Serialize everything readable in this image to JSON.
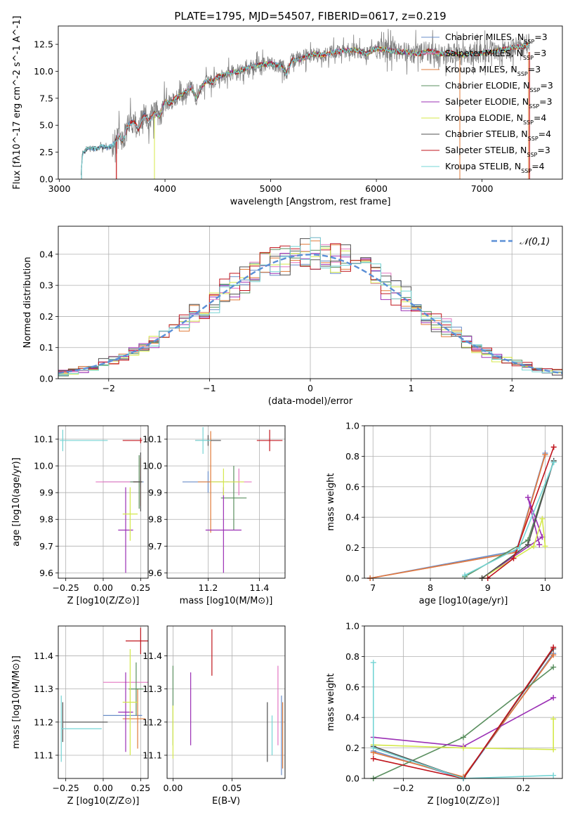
{
  "figure": {
    "background": "#ffffff"
  },
  "chart_data": [
    {
      "id": "spectrum",
      "type": "line",
      "title": "PLATE=1795, MJD=54507, FIBERID=0617, z=0.219",
      "xlabel": "wavelength [Angstrom, rest frame]",
      "ylabel": "Flux [fλ10^-17 erg cm^-2 s^-1 A^-1]",
      "xlim": [
        2990,
        7760
      ],
      "ylim": [
        0,
        14.2
      ],
      "xticks": [
        "3000",
        "4000",
        "5000",
        "6000",
        "7000"
      ],
      "yticks": [
        "0.0",
        "2.5",
        "5.0",
        "7.5",
        "10.0",
        "12.5"
      ],
      "grid": false,
      "legend": "upper-right",
      "data_series": {
        "color": "#808080",
        "x": [
          3205,
          3220,
          3260,
          3300,
          3350,
          3400,
          3450,
          3500,
          3560,
          3600,
          3650,
          3700,
          3750,
          3800,
          3850,
          3900,
          3950,
          4000,
          4050,
          4100,
          4150,
          4200,
          4250,
          4300,
          4350,
          4400,
          4450,
          4500,
          4600,
          4700,
          4800,
          4900,
          5000,
          5100,
          5150,
          5200,
          5300,
          5400,
          5500,
          5600,
          5700,
          5800,
          5900,
          6000,
          6100,
          6200,
          6300,
          6400,
          6500,
          6600,
          6700,
          6800,
          6900,
          7000,
          7100,
          7200,
          7300,
          7400,
          7450
        ],
        "y": [
          0.5,
          2.4,
          2.8,
          2.9,
          2.8,
          3.0,
          2.9,
          3.1,
          4.0,
          3.5,
          5.0,
          5.4,
          4.6,
          6.0,
          5.5,
          6.2,
          5.8,
          7.2,
          7.0,
          7.5,
          7.8,
          8.1,
          8.5,
          7.4,
          8.7,
          9.1,
          9.0,
          9.5,
          9.8,
          10.0,
          10.4,
          10.6,
          10.7,
          10.5,
          9.8,
          11.0,
          11.2,
          11.6,
          11.5,
          11.8,
          11.9,
          12.0,
          11.6,
          12.1,
          12.0,
          11.8,
          11.8,
          11.6,
          11.9,
          11.6,
          11.7,
          11.5,
          11.6,
          11.7,
          11.8,
          12.0,
          12.2,
          12.3,
          12.6
        ]
      },
      "model_series": [
        {
          "name": "Chabrier MILES, N_SSP=3",
          "color": "#6a8ec8"
        },
        {
          "name": "Salpeter MILES, N_SSP=3",
          "color": "#e377c2"
        },
        {
          "name": "Kroupa MILES, N_SSP=3",
          "color": "#e07b39"
        },
        {
          "name": "Chabrier ELODIE, N_SSP=3",
          "color": "#5a8f5f"
        },
        {
          "name": "Salpeter ELODIE, N_SSP=3",
          "color": "#9b30b5"
        },
        {
          "name": "Kroupa ELODIE, N_SSP=4",
          "color": "#d4e84a"
        },
        {
          "name": "Chabrier STELIB, N_SSP=4",
          "color": "#505050"
        },
        {
          "name": "Salpeter STELIB, N_SSP=3",
          "color": "#c0141c"
        },
        {
          "name": "Kroupa STELIB, N_SSP=4",
          "color": "#74d4d4"
        }
      ],
      "model_start": [
        3210,
        3540,
        3540,
        3900,
        3900,
        3900,
        3210,
        3540,
        3210
      ]
    },
    {
      "id": "residuals",
      "type": "histogram",
      "xlabel": "(data-model)/error",
      "ylabel": "Normed distribution",
      "xlim": [
        -2.5,
        2.5
      ],
      "ylim": [
        0,
        0.49
      ],
      "xticks": [
        "−2",
        "−1",
        "0",
        "1",
        "2"
      ],
      "yticks": [
        "0.0",
        "0.1",
        "0.2",
        "0.3",
        "0.4"
      ],
      "grid": true,
      "legend": "upper-right",
      "normal_curve": {
        "label": "𝒩(0,1)",
        "color": "#5b8fd6"
      },
      "bin_width": 0.1
    },
    {
      "id": "age-vs-Z",
      "type": "errorbar",
      "xlabel": "Z [log10(Z/Z⊙)]",
      "ylabel": "age  [log10(age/yr)]",
      "xlim": [
        -0.3,
        0.3
      ],
      "ylim": [
        9.58,
        10.15
      ],
      "xticks": [
        "−0.25",
        "0.00",
        "0.25"
      ],
      "yticks": [
        "9.6",
        "9.7",
        "9.8",
        "9.9",
        "10.0",
        "10.1"
      ],
      "grid": true,
      "points": [
        {
          "color": "#6a8ec8",
          "x": 0.25,
          "xerr": [
            0.25,
            0.02
          ],
          "y": 9.94,
          "yerr": 0.02
        },
        {
          "color": "#e377c2",
          "x": -0.05,
          "xerr": [
            0.0,
            0.3
          ],
          "y": 9.94,
          "yerr": 0.0
        },
        {
          "color": "#e07b39",
          "x": 0.25,
          "xerr": [
            0.05,
            0.01
          ],
          "y": 9.94,
          "yerr": 0.09
        },
        {
          "color": "#5a8f5f",
          "x": 0.24,
          "xerr": [
            0.06,
            0.02
          ],
          "y": 9.94,
          "yerr": 0.1
        },
        {
          "color": "#9b30b5",
          "x": 0.15,
          "xerr": [
            0.05,
            0.05
          ],
          "y": 9.76,
          "yerr": 0.16
        },
        {
          "color": "#d4e84a",
          "x": 0.18,
          "xerr": [
            0.05,
            0.05
          ],
          "y": 9.82,
          "yerr": 0.1
        },
        {
          "color": "#505050",
          "x": 0.25,
          "xerr": [
            0.05,
            0.01
          ],
          "y": 9.94,
          "yerr": 0.11
        },
        {
          "color": "#c0141c",
          "x": 0.25,
          "xerr": [
            0.12,
            0.01
          ],
          "y": 10.095,
          "yerr": 0.01
        },
        {
          "color": "#74d4d4",
          "x": -0.27,
          "xerr": [
            0.02,
            0.3
          ],
          "y": 10.095,
          "yerr": 0.04
        }
      ]
    },
    {
      "id": "age-vs-mass",
      "type": "errorbar",
      "xlabel": "mass [log10(M/M⊙)]",
      "ylabel": "",
      "xlim": [
        11.04,
        11.5
      ],
      "ylim": [
        9.58,
        10.15
      ],
      "xticks": [
        "11.2",
        "11.4"
      ],
      "yticks": [
        "9.6",
        "9.7",
        "9.8",
        "9.9",
        "10.0",
        "10.1"
      ],
      "grid": true,
      "points": [
        {
          "color": "#6a8ec8",
          "x": 11.2,
          "xerr": [
            0.1,
            0.08
          ],
          "y": 9.94,
          "yerr": 0.04
        },
        {
          "color": "#e377c2",
          "x": 11.32,
          "xerr": [
            0.05,
            0.05
          ],
          "y": 9.94,
          "yerr": 0.05
        },
        {
          "color": "#e07b39",
          "x": 11.21,
          "xerr": [
            0.05,
            0.05
          ],
          "y": 9.94,
          "yerr": 0.19
        },
        {
          "color": "#5a8f5f",
          "x": 11.3,
          "xerr": [
            0.05,
            0.05
          ],
          "y": 9.88,
          "yerr": 0.12
        },
        {
          "color": "#9b30b5",
          "x": 11.26,
          "xerr": [
            0.07,
            0.07
          ],
          "y": 9.76,
          "yerr": 0.16
        },
        {
          "color": "#d4e84a",
          "x": 11.26,
          "xerr": [
            0.05,
            0.08
          ],
          "y": 9.94,
          "yerr": 0.05
        },
        {
          "color": "#505050",
          "x": 11.2,
          "xerr": [
            0.05,
            0.05
          ],
          "y": 10.095,
          "yerr": 0.02
        },
        {
          "color": "#c0141c",
          "x": 11.44,
          "xerr": [
            0.05,
            0.05
          ],
          "y": 10.095,
          "yerr": 0.04
        },
        {
          "color": "#74d4d4",
          "x": 11.18,
          "xerr": [
            0.03,
            0.03
          ],
          "y": 10.095,
          "yerr": 0.05
        }
      ]
    },
    {
      "id": "weight-vs-age",
      "type": "line",
      "xlabel": "age  [log10(age/yr)]",
      "ylabel": "mass weight",
      "xlim": [
        6.85,
        10.3
      ],
      "ylim": [
        0,
        1.0
      ],
      "xticks": [
        "7",
        "8",
        "9",
        "10"
      ],
      "yticks": [
        "0.0",
        "0.2",
        "0.4",
        "0.6",
        "0.8",
        "1.0"
      ],
      "grid": true,
      "series": [
        {
          "color": "#6a8ec8",
          "x": [
            6.95,
            9.5,
            10.0
          ],
          "y": [
            0.0,
            0.18,
            0.82
          ]
        },
        {
          "color": "#e377c2",
          "x": [
            6.95,
            9.5,
            10.0
          ],
          "y": [
            0.0,
            0.17,
            0.81
          ]
        },
        {
          "color": "#e07b39",
          "x": [
            6.95,
            9.5,
            10.0
          ],
          "y": [
            0.0,
            0.17,
            0.81
          ]
        },
        {
          "color": "#5a8f5f",
          "x": [
            8.6,
            9.7,
            10.15
          ],
          "y": [
            0.01,
            0.25,
            0.77
          ]
        },
        {
          "color": "#9b30b5",
          "x": [
            8.9,
            9.95,
            9.7,
            9.9
          ],
          "y": [
            0.0,
            0.27,
            0.53,
            0.22
          ]
        },
        {
          "color": "#d4e84a",
          "x": [
            8.9,
            9.8,
            9.95,
            10.0
          ],
          "y": [
            0.0,
            0.21,
            0.39,
            0.21
          ]
        },
        {
          "color": "#505050",
          "x": [
            8.9,
            9.7,
            10.15
          ],
          "y": [
            0.0,
            0.22,
            0.77
          ]
        },
        {
          "color": "#c0141c",
          "x": [
            9.0,
            9.45,
            10.15
          ],
          "y": [
            0.0,
            0.13,
            0.86
          ]
        },
        {
          "color": "#74d4d4",
          "x": [
            8.6,
            9.55,
            10.15
          ],
          "y": [
            0.02,
            0.2,
            0.76
          ]
        }
      ]
    },
    {
      "id": "mass-vs-Z",
      "type": "errorbar",
      "xlabel": "Z [log10(Z/Z⊙)]",
      "ylabel": "mass [log10(M/M⊙)]",
      "xlim": [
        -0.3,
        0.3
      ],
      "ylim": [
        11.03,
        11.49
      ],
      "xticks": [
        "−0.25",
        "0.00",
        "0.25"
      ],
      "yticks": [
        "11.1",
        "11.2",
        "11.3",
        "11.4"
      ],
      "grid": true,
      "points": [
        {
          "color": "#6a8ec8",
          "x": 0.13,
          "xerr": [
            0.13,
            0.13
          ],
          "y": 11.22,
          "yerr": 0.0
        },
        {
          "color": "#e377c2",
          "x": 0.15,
          "xerr": [
            0.15,
            0.15
          ],
          "y": 11.32,
          "yerr": 0.0
        },
        {
          "color": "#e07b39",
          "x": 0.23,
          "xerr": [
            0.1,
            0.05
          ],
          "y": 11.21,
          "yerr": 0.09
        },
        {
          "color": "#5a8f5f",
          "x": 0.22,
          "xerr": [
            0.05,
            0.05
          ],
          "y": 11.3,
          "yerr": 0.08
        },
        {
          "color": "#9b30b5",
          "x": 0.15,
          "xerr": [
            0.05,
            0.05
          ],
          "y": 11.23,
          "yerr": 0.12
        },
        {
          "color": "#d4e84a",
          "x": 0.18,
          "xerr": [
            0.05,
            0.05
          ],
          "y": 11.26,
          "yerr": 0.16
        },
        {
          "color": "#505050",
          "x": -0.27,
          "xerr": [
            0.0,
            0.3
          ],
          "y": 11.2,
          "yerr": 0.06
        },
        {
          "color": "#c0141c",
          "x": 0.25,
          "xerr": [
            0.1,
            0.05
          ],
          "y": 11.445,
          "yerr": 0.04
        },
        {
          "color": "#74d4d4",
          "x": -0.28,
          "xerr": [
            0.0,
            0.27
          ],
          "y": 11.18,
          "yerr": 0.1
        }
      ]
    },
    {
      "id": "mass-vs-ebv",
      "type": "errorbar",
      "xlabel": "E(B-V)",
      "ylabel": "",
      "xlim": [
        -0.005,
        0.095
      ],
      "ylim": [
        11.03,
        11.49
      ],
      "xticks": [
        "0.00",
        "0.05"
      ],
      "yticks": [
        "11.1",
        "11.2",
        "11.3",
        "11.4"
      ],
      "grid": true,
      "points": [
        {
          "color": "#6a8ec8",
          "x": 0.092,
          "xerr": [
            0.0,
            0.0
          ],
          "y": 11.16,
          "yerr": 0.12
        },
        {
          "color": "#e377c2",
          "x": 0.089,
          "xerr": [
            0.0,
            0.0
          ],
          "y": 11.25,
          "yerr": 0.12
        },
        {
          "color": "#e07b39",
          "x": 0.093,
          "xerr": [
            0.0,
            0.0
          ],
          "y": 11.16,
          "yerr": 0.1
        },
        {
          "color": "#5a8f5f",
          "x": 0.0,
          "xerr": [
            0.0,
            0.0
          ],
          "y": 11.25,
          "yerr": 0.12
        },
        {
          "color": "#9b30b5",
          "x": 0.015,
          "xerr": [
            0.0,
            0.0
          ],
          "y": 11.24,
          "yerr": 0.11
        },
        {
          "color": "#d4e84a",
          "x": 0.0,
          "xerr": [
            0.0,
            0.0
          ],
          "y": 11.17,
          "yerr": 0.08
        },
        {
          "color": "#505050",
          "x": 0.08,
          "xerr": [
            0.0,
            0.0
          ],
          "y": 11.17,
          "yerr": 0.09
        },
        {
          "color": "#c0141c",
          "x": 0.033,
          "xerr": [
            0.0,
            0.0
          ],
          "y": 11.41,
          "yerr": 0.07
        },
        {
          "color": "#74d4d4",
          "x": 0.084,
          "xerr": [
            0.0,
            0.0
          ],
          "y": 11.16,
          "yerr": 0.06
        }
      ]
    },
    {
      "id": "weight-vs-Z",
      "type": "line",
      "xlabel": "Z [log10(Z/Z⊙)]",
      "ylabel": "mass weight",
      "xlim": [
        -0.33,
        0.33
      ],
      "ylim": [
        0,
        1.0
      ],
      "xticks": [
        "−0.2",
        "0.0",
        "0.2"
      ],
      "yticks": [
        "0.0",
        "0.2",
        "0.4",
        "0.6",
        "0.8",
        "1.0"
      ],
      "grid": true,
      "series": [
        {
          "color": "#6a8ec8",
          "x": [
            -0.3,
            0.0,
            0.3
          ],
          "y": [
            0.18,
            0.0,
            0.82
          ]
        },
        {
          "color": "#e377c2",
          "x": [
            -0.3,
            0.0,
            0.3
          ],
          "y": [
            0.17,
            0.01,
            0.81
          ]
        },
        {
          "color": "#e07b39",
          "x": [
            -0.3,
            0.0,
            0.3
          ],
          "y": [
            0.17,
            0.01,
            0.81
          ]
        },
        {
          "color": "#5a8f5f",
          "x": [
            -0.3,
            0.0,
            0.3
          ],
          "y": [
            0.0,
            0.27,
            0.73
          ]
        },
        {
          "color": "#9b30b5",
          "x": [
            -0.3,
            0.0,
            0.3
          ],
          "y": [
            0.27,
            0.21,
            0.53
          ]
        },
        {
          "color": "#d4e84a",
          "x": [
            -0.3,
            0.0,
            0.3,
            0.3
          ],
          "y": [
            0.22,
            0.2,
            0.19,
            0.39
          ]
        },
        {
          "color": "#505050",
          "x": [
            -0.3,
            0.0,
            0.3
          ],
          "y": [
            0.21,
            0.0,
            0.85
          ]
        },
        {
          "color": "#c0141c",
          "x": [
            -0.3,
            0.0,
            0.3
          ],
          "y": [
            0.13,
            0.0,
            0.86
          ]
        },
        {
          "color": "#74d4d4",
          "x": [
            -0.3,
            -0.3,
            0.0,
            0.3
          ],
          "y": [
            0.76,
            0.2,
            0.0,
            0.02
          ]
        }
      ]
    }
  ]
}
